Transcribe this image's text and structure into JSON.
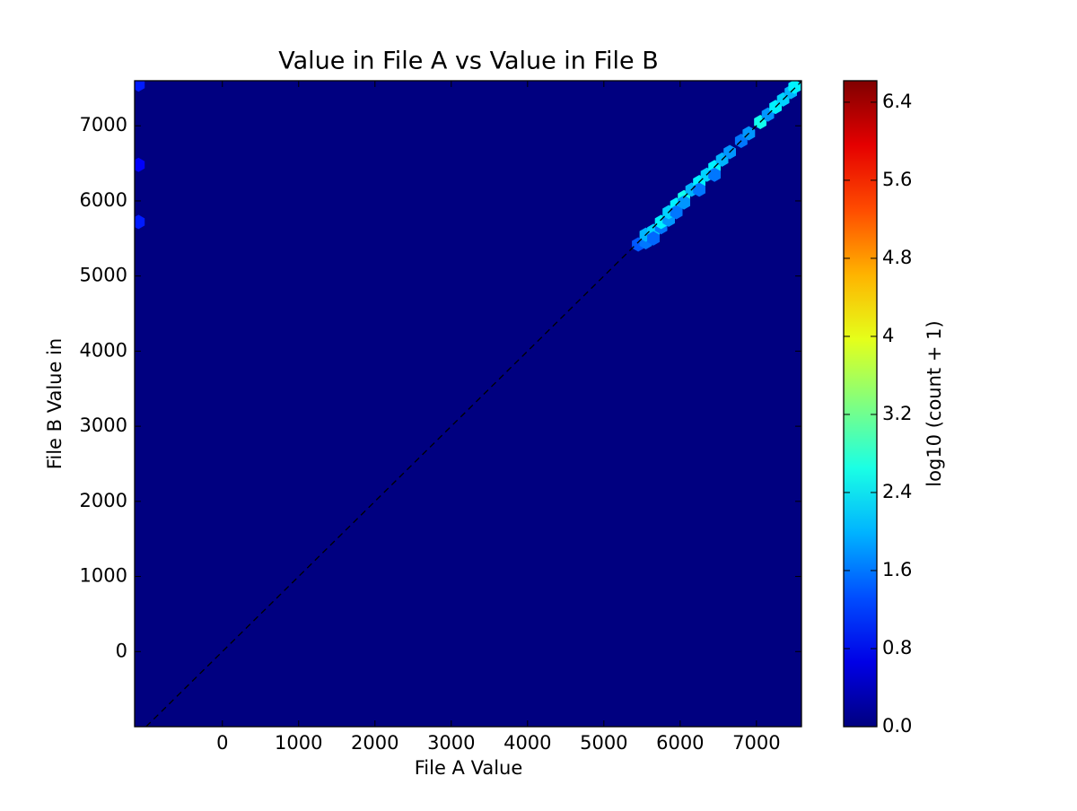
{
  "chart_data": {
    "type": "hexbin",
    "title": "Value in File A vs Value in File B",
    "xlabel": "File A Value",
    "ylabel": "File B Value in",
    "colorbar_label": "log10 (count + 1)",
    "colormap": "jet",
    "xlim": [
      -1150,
      7590
    ],
    "ylim": [
      -1000,
      7600
    ],
    "xticks": [
      0,
      1000,
      2000,
      3000,
      4000,
      5000,
      6000,
      7000
    ],
    "yticks": [
      0,
      1000,
      2000,
      3000,
      4000,
      5000,
      6000,
      7000
    ],
    "clim": [
      0,
      6.62
    ],
    "cticks": [
      {
        "value": 0,
        "label": "0.0"
      },
      0.8,
      1.6,
      2.4,
      3.2,
      4.0,
      4.8,
      5.6,
      6.4
    ],
    "x": [
      5450,
      5550,
      5550,
      5650,
      5650,
      5750,
      5750,
      5850,
      5850,
      5950,
      5950,
      6050,
      6050,
      6150,
      6250,
      6250,
      6350,
      6450,
      6450,
      6550,
      6650,
      6800,
      6900,
      7050,
      7150,
      7250,
      7350,
      7450,
      7500,
      -1100,
      -1100,
      -1100
    ],
    "y": [
      5420,
      5450,
      5550,
      5600,
      5500,
      5650,
      5720,
      5750,
      5850,
      5950,
      5850,
      6050,
      5980,
      6150,
      6250,
      6150,
      6350,
      6450,
      6350,
      6550,
      6650,
      6800,
      6900,
      7050,
      7150,
      7250,
      7350,
      7450,
      7520,
      7550,
      6480,
      5720
    ],
    "values": [
      1.4,
      1.6,
      2.0,
      2.2,
      1.5,
      1.6,
      2.4,
      1.8,
      2.2,
      2.4,
      1.6,
      2.6,
      1.8,
      2.0,
      2.4,
      1.6,
      2.2,
      2.4,
      1.6,
      2.0,
      1.8,
      1.6,
      1.8,
      2.6,
      1.8,
      2.4,
      2.2,
      2.0,
      2.4,
      1.0,
      0.8,
      1.0
    ]
  }
}
